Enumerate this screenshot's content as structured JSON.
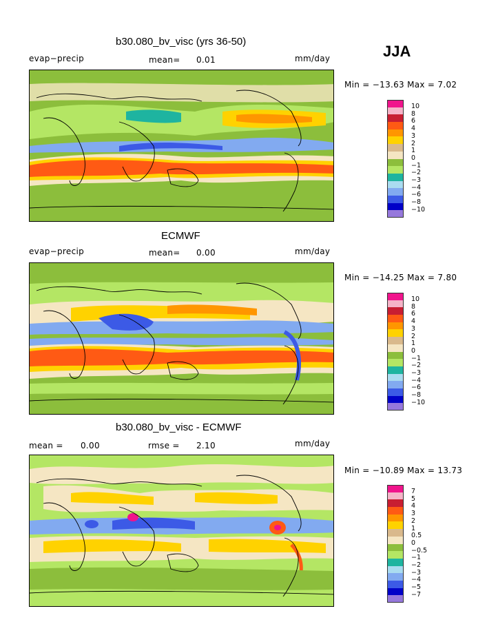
{
  "season": "JJA",
  "units_label": "mm/day",
  "color_scale_main": [
    "#f0148c",
    "#f5b4c8",
    "#c81e32",
    "#ff5a14",
    "#ff9600",
    "#ffd200",
    "#d9b98c",
    "#f5e6c3",
    "#8cbe3c",
    "#b4e664",
    "#1eb4a0",
    "#aadcf0",
    "#82aaf0",
    "#3c5ae6",
    "#0000c8",
    "#9678dc"
  ],
  "panels": [
    {
      "title": "b30.080_bv_visc (yrs 36-50)",
      "left_label": "evap−precip",
      "mean_label": "mean=",
      "mean_value": "0.01",
      "units": "mm/day",
      "minmax_text": "Min = −13.63  Max =    7.02",
      "legend_labels": [
        "10",
        "8",
        "6",
        "4",
        "3",
        "2",
        "1",
        "0",
        "−1",
        "−2",
        "−3",
        "−4",
        "−6",
        "−8",
        "−10"
      ]
    },
    {
      "title": "ECMWF",
      "left_label": "evap−precip",
      "mean_label": "mean=",
      "mean_value": "0.00",
      "units": "mm/day",
      "minmax_text": "Min = −14.25  Max =    7.80",
      "legend_labels": [
        "10",
        "8",
        "6",
        "4",
        "3",
        "2",
        "1",
        "0",
        "−1",
        "−2",
        "−3",
        "−4",
        "−6",
        "−8",
        "−10"
      ]
    },
    {
      "title": "b30.080_bv_visc - ECMWF",
      "left_label": "mean =",
      "mean_value": "0.00",
      "rmse_label": "rmse =",
      "rmse_value": "2.10",
      "units": "mm/day",
      "minmax_text": "Min = −10.89  Max =   13.73",
      "legend_labels": [
        "7",
        "5",
        "4",
        "3",
        "2",
        "1",
        "0.5",
        "0",
        "−0.5",
        "−1",
        "−2",
        "−3",
        "−4",
        "−5",
        "−7"
      ]
    }
  ]
}
